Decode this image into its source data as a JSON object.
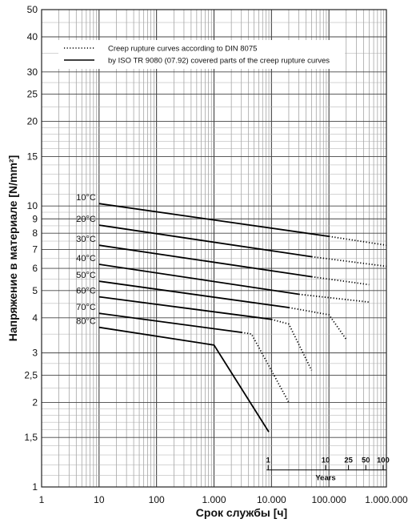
{
  "chart_data": {
    "type": "line",
    "xlabel": "Срок службы  [ч]",
    "ylabel": "Напряжение в материале [N/mm²]",
    "x_scale": "log",
    "y_scale": "log",
    "xlim": [
      1,
      1000000
    ],
    "ylim": [
      1,
      50
    ],
    "x_ticks": [
      {
        "value": 1,
        "label": "1"
      },
      {
        "value": 10,
        "label": "10"
      },
      {
        "value": 100,
        "label": "100"
      },
      {
        "value": 1000,
        "label": "1.000"
      },
      {
        "value": 10000,
        "label": "10.000"
      },
      {
        "value": 100000,
        "label": "100.000"
      },
      {
        "value": 1000000,
        "label": "1.000.000"
      }
    ],
    "y_ticks": [
      {
        "value": 1,
        "label": "1"
      },
      {
        "value": 1.5,
        "label": "1,5"
      },
      {
        "value": 2,
        "label": "2"
      },
      {
        "value": 2.5,
        "label": "2,5"
      },
      {
        "value": 3,
        "label": "3"
      },
      {
        "value": 4,
        "label": "4"
      },
      {
        "value": 5,
        "label": "5"
      },
      {
        "value": 6,
        "label": "6"
      },
      {
        "value": 7,
        "label": "7"
      },
      {
        "value": 8,
        "label": "8"
      },
      {
        "value": 9,
        "label": "9"
      },
      {
        "value": 10,
        "label": "10"
      },
      {
        "value": 15,
        "label": "15"
      },
      {
        "value": 20,
        "label": "20"
      },
      {
        "value": 25,
        "label": "25"
      },
      {
        "value": 30,
        "label": "30"
      },
      {
        "value": 40,
        "label": "40"
      },
      {
        "value": 50,
        "label": "50"
      }
    ],
    "grid": true,
    "legend": {
      "placement": "top",
      "entries": [
        {
          "style": "dotted",
          "label": "Creep rupture curves according to DIN 8075"
        },
        {
          "style": "solid",
          "label": "by ISO TR 9080 (07.92) covered parts of the creep rupture curves"
        }
      ]
    },
    "years_scale": {
      "title": "Years",
      "ticks": [
        {
          "hours": 8760,
          "label": "1"
        },
        {
          "hours": 87600,
          "label": "10"
        },
        {
          "hours": 219000,
          "label": "25"
        },
        {
          "hours": 438000,
          "label": "50"
        },
        {
          "hours": 876000,
          "label": "100"
        }
      ]
    },
    "series": [
      {
        "name": "10°C",
        "solid": [
          [
            10,
            10.2
          ],
          [
            100000,
            7.8
          ]
        ],
        "dotted": [
          [
            100000,
            7.8
          ],
          [
            1000000,
            7.25
          ]
        ]
      },
      {
        "name": "20°C",
        "solid": [
          [
            10,
            8.55
          ],
          [
            50000,
            6.6
          ]
        ],
        "dotted": [
          [
            50000,
            6.6
          ],
          [
            1000000,
            6.1
          ]
        ]
      },
      {
        "name": "30°C",
        "solid": [
          [
            10,
            7.25
          ],
          [
            50000,
            5.6
          ]
        ],
        "dotted": [
          [
            50000,
            5.6
          ],
          [
            500000,
            5.25
          ]
        ]
      },
      {
        "name": "40°C",
        "solid": [
          [
            10,
            6.2
          ],
          [
            30000,
            4.85
          ]
        ],
        "dotted": [
          [
            30000,
            4.85
          ],
          [
            500000,
            4.55
          ]
        ]
      },
      {
        "name": "50°C",
        "solid": [
          [
            10,
            5.4
          ],
          [
            20000,
            4.35
          ]
        ],
        "dotted": [
          [
            20000,
            4.35
          ],
          [
            100000,
            4.1
          ],
          [
            200000,
            3.35
          ]
        ]
      },
      {
        "name": "60°C",
        "solid": [
          [
            10,
            4.75
          ],
          [
            10000,
            3.95
          ]
        ],
        "dotted": [
          [
            10000,
            3.95
          ],
          [
            20000,
            3.8
          ],
          [
            50000,
            2.6
          ]
        ]
      },
      {
        "name": "70°C",
        "solid": [
          [
            10,
            4.15
          ],
          [
            3000,
            3.55
          ]
        ],
        "dotted": [
          [
            3000,
            3.55
          ],
          [
            4500,
            3.5
          ],
          [
            20000,
            2.0
          ]
        ]
      },
      {
        "name": "80°C",
        "solid": [
          [
            10,
            3.7
          ],
          [
            1000,
            3.2
          ],
          [
            9000,
            1.57
          ]
        ],
        "dotted": []
      }
    ]
  }
}
